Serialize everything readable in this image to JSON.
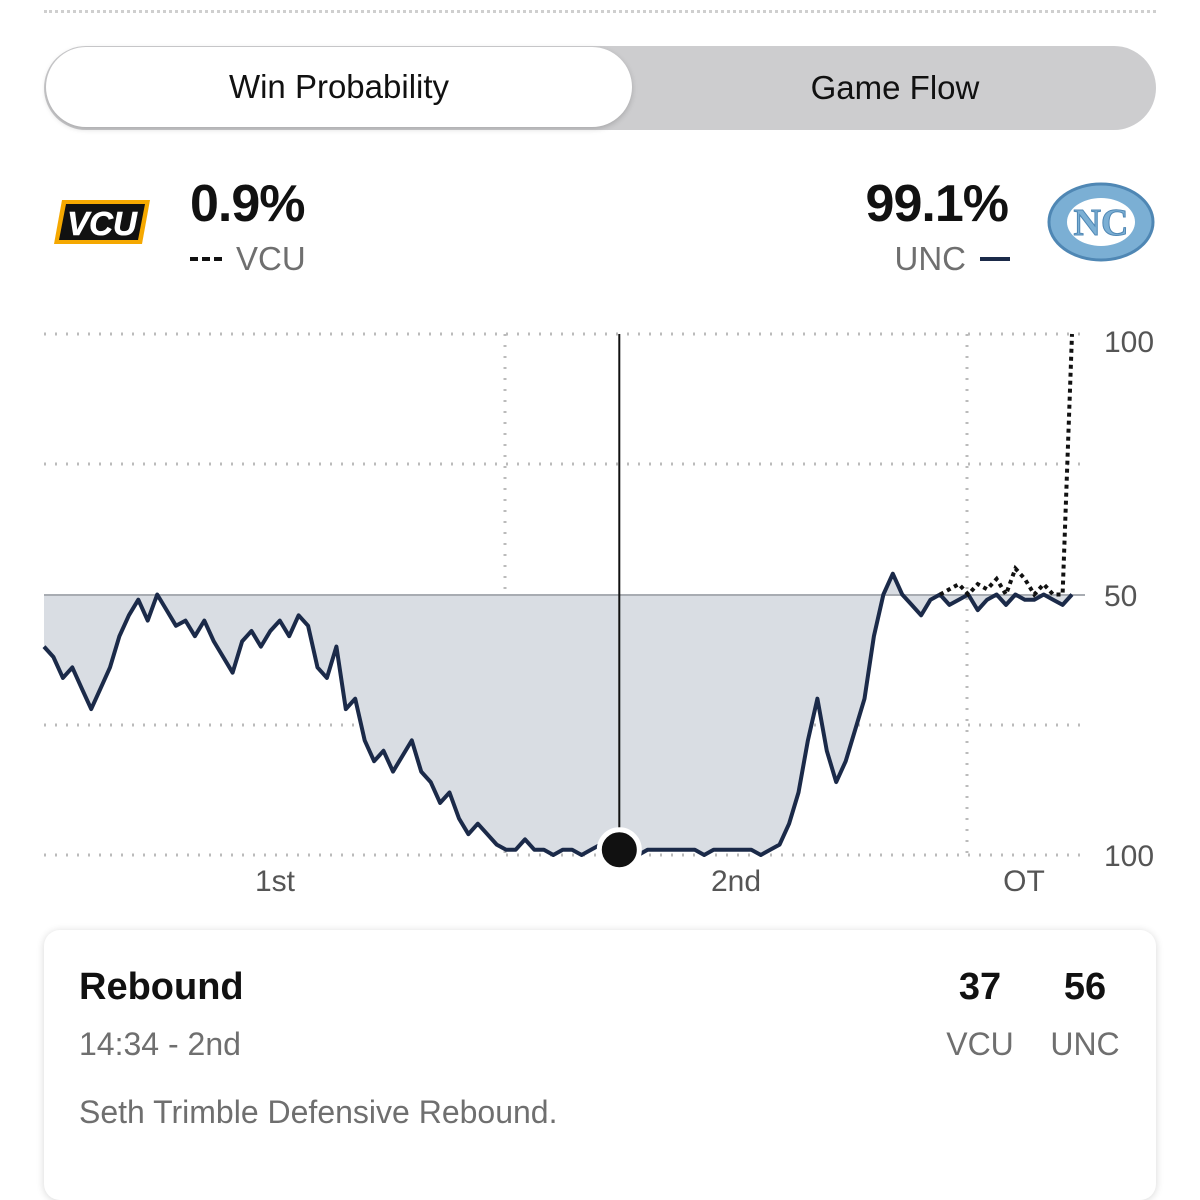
{
  "tabs": [
    {
      "label": "Win Probability",
      "active": true
    },
    {
      "label": "Game Flow",
      "active": false
    }
  ],
  "teams": {
    "away": {
      "abbr": "VCU",
      "win_pct": "0.9%",
      "logo_text": "VCU",
      "color": "#f5a800",
      "line_style": "dashed"
    },
    "home": {
      "abbr": "UNC",
      "win_pct": "99.1%",
      "logo_text": "NC",
      "color": "#7bafd4",
      "line_style": "solid",
      "line_color": "#1b2a49"
    }
  },
  "chart_data": {
    "type": "area",
    "y_ticks": [
      "100",
      "50",
      "100"
    ],
    "x_period_labels": [
      "1st",
      "2nd",
      "OT"
    ],
    "grid": true,
    "fill_color": "#d9dde3",
    "series": [
      {
        "name": "UNC",
        "style": "solid",
        "color": "#1b2a49",
        "x": [
          0,
          1,
          2,
          3,
          4,
          5,
          6,
          7,
          8,
          9,
          10,
          11,
          12,
          13,
          14,
          15,
          16,
          17,
          18,
          19,
          20,
          21,
          22,
          23,
          24,
          25,
          26,
          27,
          28,
          29,
          30,
          31,
          32,
          33,
          34,
          35,
          36,
          37,
          38,
          39,
          40,
          41,
          42,
          43,
          44,
          45,
          46,
          47,
          48,
          49,
          50,
          51,
          52,
          53,
          54,
          55,
          56,
          57,
          58,
          59,
          60,
          61,
          62,
          63,
          64,
          65,
          66,
          67,
          68,
          69,
          70,
          71,
          72,
          73,
          74,
          75,
          76,
          77,
          78,
          79,
          80,
          81,
          82,
          83,
          84,
          85,
          86,
          87,
          88,
          89,
          90,
          91,
          92,
          93,
          94,
          95,
          96,
          97,
          98,
          99,
          100,
          101,
          102,
          103,
          104,
          105,
          106,
          107,
          108,
          109
        ],
        "y": [
          60,
          62,
          66,
          64,
          68,
          72,
          68,
          64,
          58,
          54,
          51,
          55,
          50,
          53,
          56,
          55,
          58,
          55,
          59,
          62,
          65,
          59,
          57,
          60,
          57,
          55,
          58,
          54,
          56,
          64,
          66,
          60,
          72,
          70,
          78,
          82,
          80,
          84,
          81,
          78,
          84,
          86,
          90,
          88,
          93,
          96,
          94,
          96,
          98,
          99,
          99,
          97,
          99,
          99,
          100,
          99,
          99,
          100,
          99,
          98,
          99,
          99,
          99,
          100,
          99,
          99,
          99,
          99,
          99,
          99,
          100,
          99,
          99,
          99,
          99,
          99,
          100,
          99,
          98,
          94,
          88,
          78,
          70,
          80,
          86,
          82,
          76,
          70,
          58,
          50,
          46,
          50,
          52,
          54,
          51,
          50,
          52,
          51,
          50,
          53,
          51,
          50,
          52,
          50,
          51,
          51,
          50,
          51,
          52,
          50
        ]
      },
      {
        "name": "VCU",
        "style": "dashed",
        "color": "#111111",
        "x": [
          95,
          96,
          97,
          98,
          99,
          100,
          101,
          102,
          103,
          104,
          105,
          106,
          107,
          108,
          109
        ],
        "y": [
          50,
          49,
          48,
          50,
          48,
          49,
          47,
          50,
          45,
          47,
          50,
          48,
          50,
          50,
          0
        ]
      }
    ]
  },
  "play": {
    "type": "Rebound",
    "time": "14:34 - 2nd",
    "description": "Seth Trimble Defensive Rebound.",
    "away_score": "37",
    "home_score": "56",
    "away_label": "VCU",
    "home_label": "UNC"
  },
  "scrub_index": 61
}
